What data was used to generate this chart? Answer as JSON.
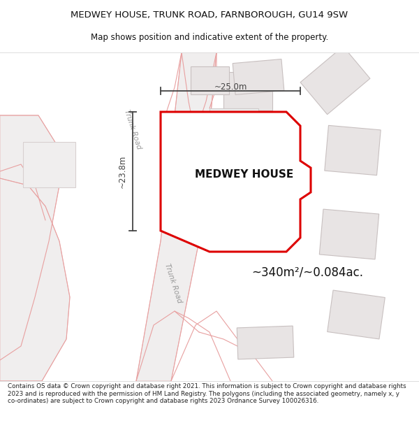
{
  "title_line1": "MEDWEY HOUSE, TRUNK ROAD, FARNBOROUGH, GU14 9SW",
  "title_line2": "Map shows position and indicative extent of the property.",
  "property_label": "MEDWEY HOUSE",
  "area_label": "~340m²/~0.084ac.",
  "dim_vertical": "~23.8m",
  "dim_horizontal": "~25.0m",
  "footer_text": "Contains OS data © Crown copyright and database right 2021. This information is subject to Crown copyright and database rights 2023 and is reproduced with the permission of HM Land Registry. The polygons (including the associated geometry, namely x, y co-ordinates) are subject to Crown copyright and database rights 2023 Ordnance Survey 100026316.",
  "map_bg": "#faf8f8",
  "road_fill": "#f0eeee",
  "road_edge": "#e8b8b8",
  "prop_fill": "#ffffff",
  "prop_edge": "#dd0000",
  "bld_fill": "#e8e4e4",
  "bld_edge": "#c8c0c0",
  "pink_outline": "#e8a0a0",
  "dim_color": "#444444",
  "text_color": "#111111",
  "road_label_color": "#999999"
}
